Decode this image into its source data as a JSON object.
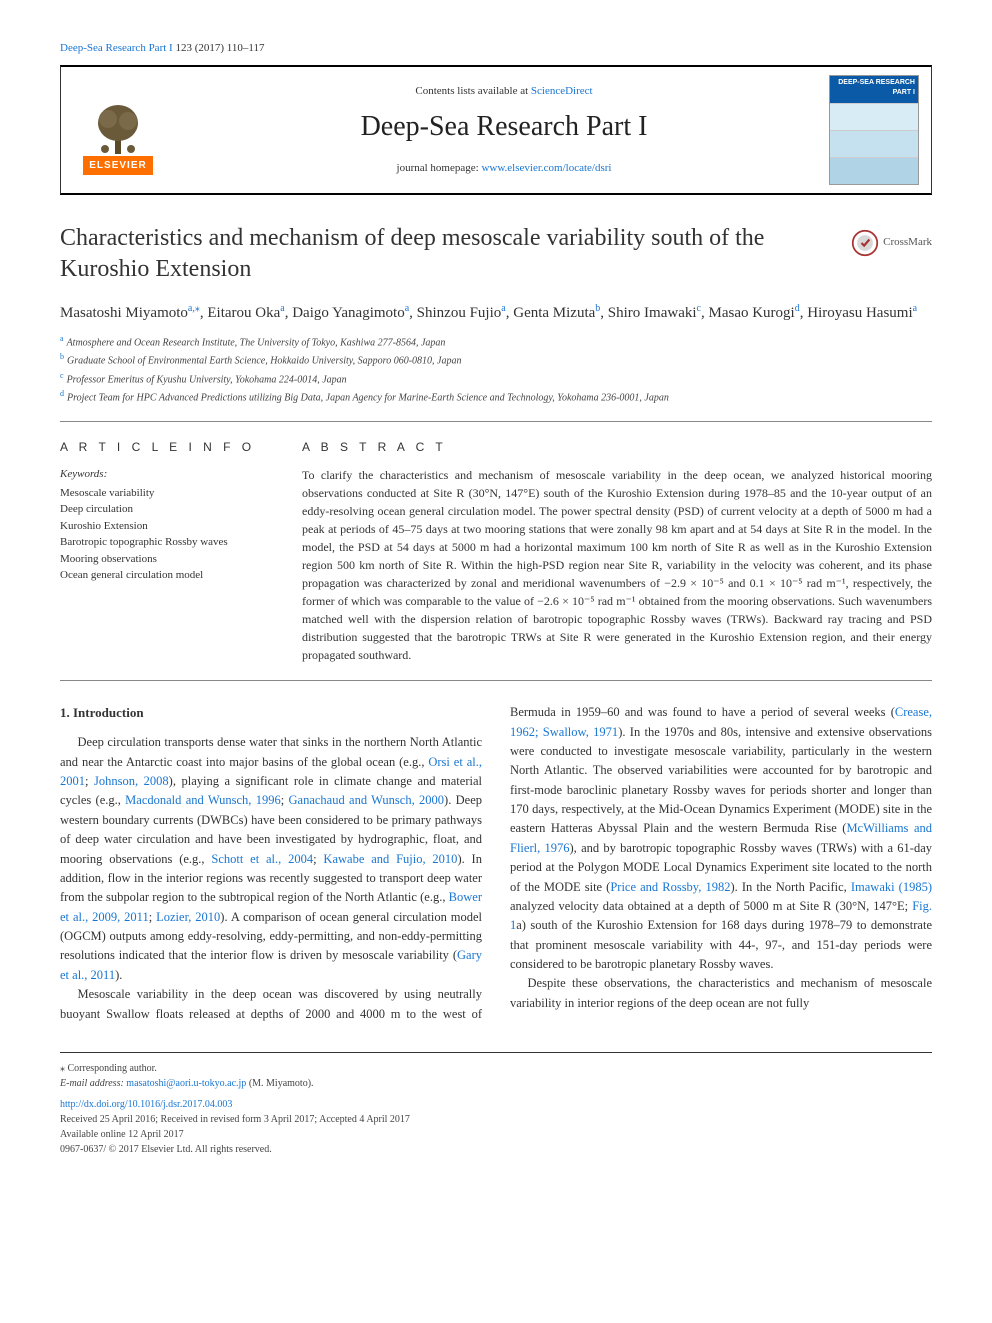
{
  "top_citation": {
    "journal_link": "Deep-Sea Research Part I",
    "rest": " 123 (2017) 110–117"
  },
  "header": {
    "contents_avail_prefix": "Contents lists available at ",
    "contents_avail_link": "ScienceDirect",
    "journal_title": "Deep-Sea Research Part I",
    "homepage_label": "journal homepage: ",
    "homepage_url": "www.elsevier.com/locate/dsri",
    "publisher_brand": "ELSEVIER",
    "cover_label_line1": "DEEP-SEA RESEARCH",
    "cover_label_line2": "PART I"
  },
  "crossmark_label": "CrossMark",
  "article_title": "Characteristics and mechanism of deep mesoscale variability south of the Kuroshio Extension",
  "authors_html_parts": [
    {
      "name": "Masatoshi Miyamoto",
      "sup": "a,⁎"
    },
    {
      "name": "Eitarou Oka",
      "sup": "a"
    },
    {
      "name": "Daigo Yanagimoto",
      "sup": "a"
    },
    {
      "name": "Shinzou Fujio",
      "sup": "a"
    },
    {
      "name": "Genta Mizuta",
      "sup": "b"
    },
    {
      "name": "Shiro Imawaki",
      "sup": "c"
    },
    {
      "name": "Masao Kurogi",
      "sup": "d"
    },
    {
      "name": "Hiroyasu Hasumi",
      "sup": "a"
    }
  ],
  "affiliations": [
    {
      "sup": "a",
      "text": "Atmosphere and Ocean Research Institute, The University of Tokyo, Kashiwa 277-8564, Japan"
    },
    {
      "sup": "b",
      "text": "Graduate School of Environmental Earth Science, Hokkaido University, Sapporo 060-0810, Japan"
    },
    {
      "sup": "c",
      "text": "Professor Emeritus of Kyushu University, Yokohama 224-0014, Japan"
    },
    {
      "sup": "d",
      "text": "Project Team for HPC Advanced Predictions utilizing Big Data, Japan Agency for Marine-Earth Science and Technology, Yokohama 236-0001, Japan"
    }
  ],
  "article_info": {
    "heading": "A R T I C L E  I N F O",
    "keywords_label": "Keywords:",
    "keywords": [
      "Mesoscale variability",
      "Deep circulation",
      "Kuroshio Extension",
      "Barotropic topographic Rossby waves",
      "Mooring observations",
      "Ocean general circulation model"
    ]
  },
  "abstract": {
    "heading": "A B S T R A C T",
    "text": "To clarify the characteristics and mechanism of mesoscale variability in the deep ocean, we analyzed historical mooring observations conducted at Site R (30°N, 147°E) south of the Kuroshio Extension during 1978–85 and the 10-year output of an eddy-resolving ocean general circulation model. The power spectral density (PSD) of current velocity at a depth of 5000 m had a peak at periods of 45–75 days at two mooring stations that were zonally 98 km apart and at 54 days at Site R in the model. In the model, the PSD at 54 days at 5000 m had a horizontal maximum 100 km north of Site R as well as in the Kuroshio Extension region 500 km north of Site R. Within the high-PSD region near Site R, variability in the velocity was coherent, and its phase propagation was characterized by zonal and meridional wavenumbers of −2.9 × 10⁻⁵ and 0.1 × 10⁻⁵ rad m⁻¹, respectively, the former of which was comparable to the value of −2.6 × 10⁻⁵ rad m⁻¹ obtained from the mooring observations. Such wavenumbers matched well with the dispersion relation of barotropic topographic Rossby waves (TRWs). Backward ray tracing and PSD distribution suggested that the barotropic TRWs at Site R were generated in the Kuroshio Extension region, and their energy propagated southward."
  },
  "intro": {
    "heading": "1. Introduction",
    "p1_a": "Deep circulation transports dense water that sinks in the northern North Atlantic and near the Antarctic coast into major basins of the global ocean (e.g., ",
    "p1_l1": "Orsi et al., 2001",
    "p1_b": "; ",
    "p1_l2": "Johnson, 2008",
    "p1_c": "), playing a significant role in climate change and material cycles (e.g., ",
    "p1_l3": "Macdonald and Wunsch, 1996",
    "p1_d": "; ",
    "p1_l4": "Ganachaud and Wunsch, 2000",
    "p1_e": "). Deep western boundary currents (DWBCs) have been considered to be primary pathways of deep water circulation and have been investigated by hydrographic, float, and mooring observations (e.g., ",
    "p1_l5": "Schott et al., 2004",
    "p1_f": "; ",
    "p1_l6": "Kawabe and Fujio, 2010",
    "p1_g": "). In addition, flow in the interior regions was recently suggested to transport deep water from the subpolar region to the subtropical region of the North Atlantic (e.g., ",
    "p1_l7": "Bower et al., 2009, 2011",
    "p1_h": "; ",
    "p1_l8": "Lozier, 2010",
    "p1_i": "). A comparison of ocean general circulation model (OGCM) outputs among eddy-resolving, eddy-permitting, and non-eddy-permitting resolutions indicated that the interior flow is driven by mesoscale variability (",
    "p1_l9": "Gary et al., 2011",
    "p1_j": ").",
    "p2_a": "Mesoscale variability in the deep ocean was discovered by using neutrally buoyant Swallow floats released at depths of 2000 and 4000 m to the west of Bermuda in 1959–60 and was found to have a period of several weeks (",
    "p2_l1": "Crease, 1962; Swallow, 1971",
    "p2_b": "). In the 1970s and 80s, intensive and extensive observations were conducted to investigate mesoscale variability, particularly in the western North Atlantic. The observed variabilities were accounted for by barotropic and first-mode baroclinic planetary Rossby waves for periods shorter and longer than 170 days, respectively, at the Mid-Ocean Dynamics Experiment (MODE) site in the eastern Hatteras Abyssal Plain and the western Bermuda Rise (",
    "p2_l2": "McWilliams and Flierl, 1976",
    "p2_c": "), and by barotropic topographic Rossby waves (TRWs) with a 61-day period at the Polygon MODE Local Dynamics Experiment site located to the north of the MODE site (",
    "p2_l3": "Price and Rossby, 1982",
    "p2_d": "). In the North Pacific, ",
    "p2_l4": "Imawaki (1985)",
    "p2_e": " analyzed velocity data obtained at a depth of 5000 m at Site R (30°N, 147°E; ",
    "p2_l5": "Fig. 1",
    "p2_f": "a) south of the Kuroshio Extension for 168 days during 1978–79 to demonstrate that prominent mesoscale variability with 44-, 97-, and 151-day periods were considered to be barotropic planetary Rossby waves.",
    "p3": "Despite these observations, the characteristics and mechanism of mesoscale variability in interior regions of the deep ocean are not fully"
  },
  "footer": {
    "corr_label": "⁎ Corresponding author.",
    "email_label": "E-mail address: ",
    "email": "masatoshi@aori.u-tokyo.ac.jp",
    "email_suffix": " (M. Miyamoto).",
    "doi": "http://dx.doi.org/10.1016/j.dsr.2017.04.003",
    "history": "Received 25 April 2016; Received in revised form 3 April 2017; Accepted 4 April 2017",
    "online": "Available online 12 April 2017",
    "copyright": "0967-0637/ © 2017 Elsevier Ltd. All rights reserved."
  },
  "colors": {
    "link": "#1976d2",
    "orange": "#ff6f00",
    "text": "#333333",
    "blue_dark": "#0b5aa8",
    "red": "#a83232"
  }
}
